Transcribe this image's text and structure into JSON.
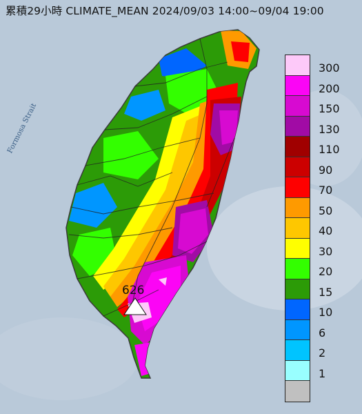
{
  "title": "累積29小時 CLIMATE_MEAN 2024/09/03 14:00~09/04 19:00",
  "map": {
    "strait_label": "Formosa Strait",
    "max_value_label": "626"
  },
  "legend": {
    "levels": [
      {
        "label": "300",
        "color": "#fdc9f9"
      },
      {
        "label": "200",
        "color": "#fb05f5"
      },
      {
        "label": "150",
        "color": "#d70ad1"
      },
      {
        "label": "130",
        "color": "#a10ba5"
      },
      {
        "label": "110",
        "color": "#a00000"
      },
      {
        "label": "90",
        "color": "#cc0000"
      },
      {
        "label": "70",
        "color": "#fe0000"
      },
      {
        "label": "50",
        "color": "#fe9a00"
      },
      {
        "label": "40",
        "color": "#fec700"
      },
      {
        "label": "30",
        "color": "#ffff00"
      },
      {
        "label": "20",
        "color": "#33ff00"
      },
      {
        "label": "15",
        "color": "#2c9b07"
      },
      {
        "label": "10",
        "color": "#0066ff"
      },
      {
        "label": "6",
        "color": "#0096ff"
      },
      {
        "label": "2",
        "color": "#00c4ff"
      },
      {
        "label": "1",
        "color": "#99ffff"
      },
      {
        "label": "",
        "color": "#c0c0c0"
      }
    ]
  }
}
